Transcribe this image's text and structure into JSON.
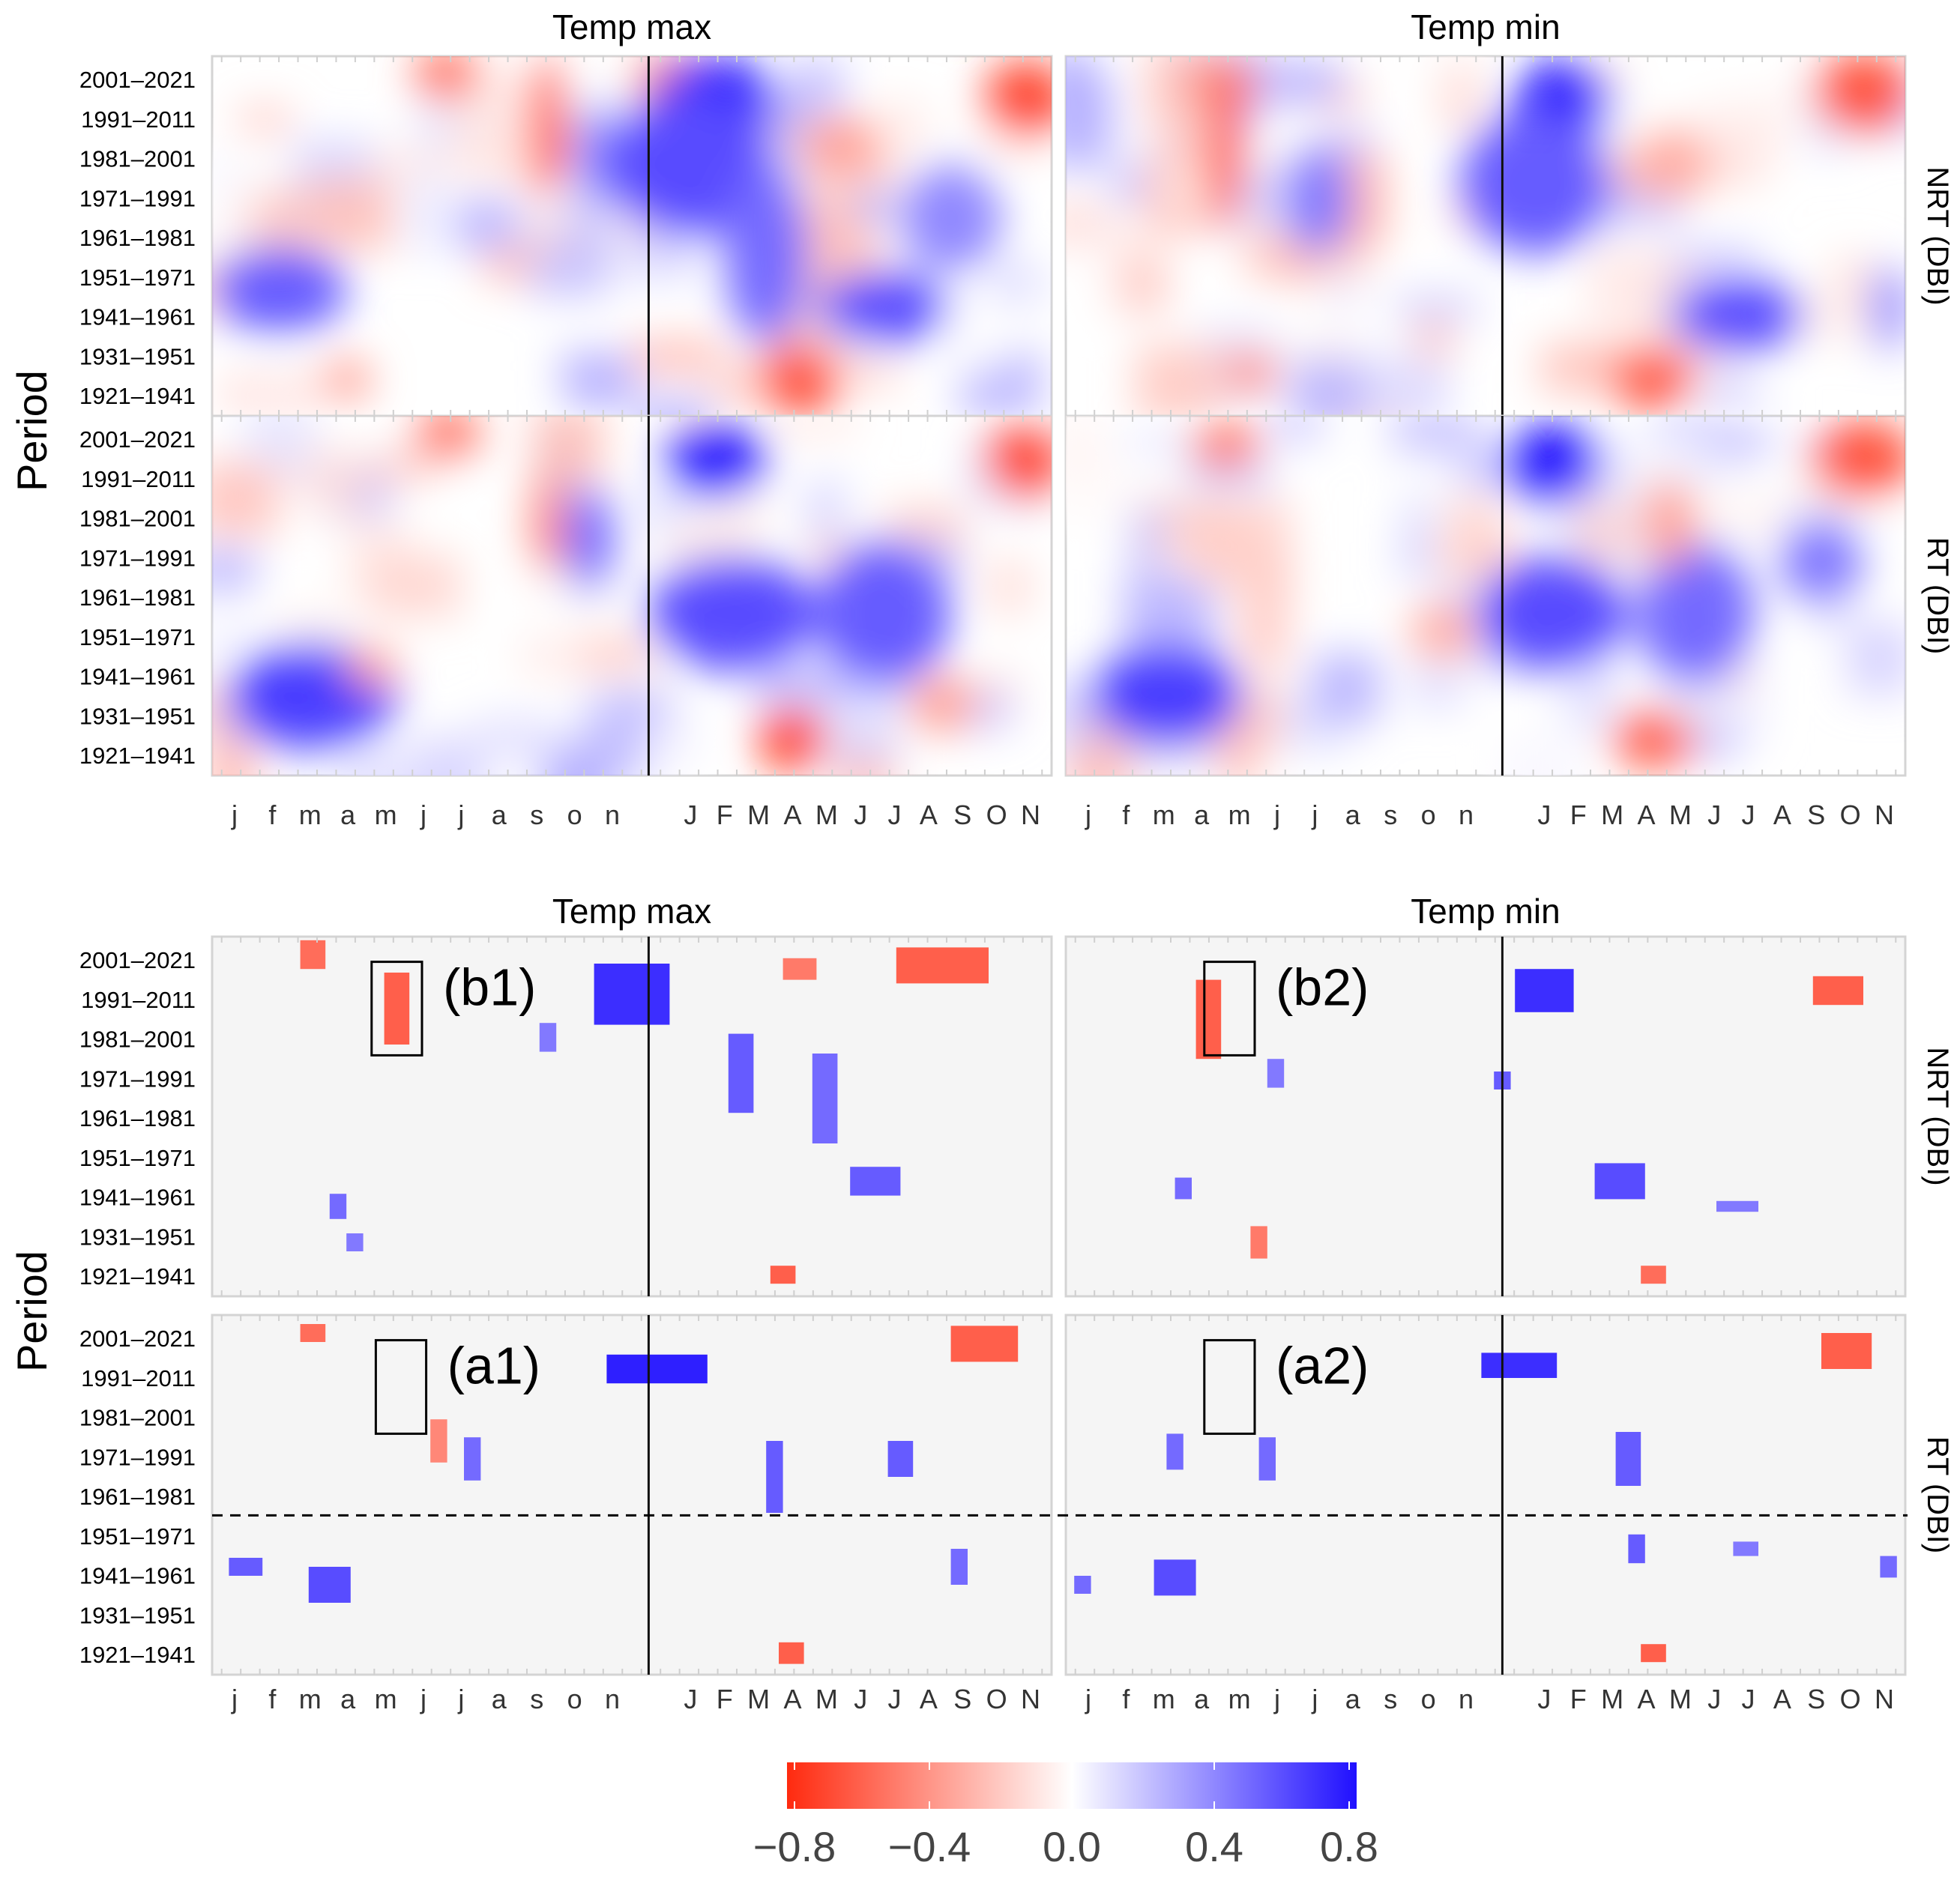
{
  "chart_data": {
    "type": "heatmap",
    "figure_title": "",
    "column_titles": [
      "Temp max",
      "Temp min"
    ],
    "row_strip_labels": [
      "NRT (DBI)",
      "RT (DBI)"
    ],
    "y_axis_label": "Period",
    "y_categories": [
      "2001–2021",
      "1991–2011",
      "1981–2001",
      "1971–1991",
      "1961–1981",
      "1951–1971",
      "1941–1961",
      "1931–1951",
      "1921–1941"
    ],
    "x_tick_labels": [
      "j",
      "f",
      "m",
      "a",
      "m",
      "j",
      "j",
      "a",
      "s",
      "o",
      "n",
      "J",
      "F",
      "M",
      "A",
      "M",
      "J",
      "J",
      "A",
      "S",
      "O",
      "N"
    ],
    "colorbar": {
      "ticks": [
        -0.8,
        -0.4,
        0.0,
        0.4,
        0.8
      ],
      "tick_labels": [
        "−0.8",
        "−0.4",
        "0.0",
        "0.4",
        "0.8"
      ],
      "range": [
        -0.8,
        0.8
      ],
      "low_color": "#ff2a0f",
      "mid_color": "#ffffff",
      "high_color": "#2010ff"
    },
    "blocks": [
      {
        "name": "all-correlations",
        "significant_only": false,
        "panels": [
          {
            "column": "Temp max",
            "row": "NRT (DBI)",
            "patches": [
              {
                "x": 0.28,
                "y": 0.95,
                "v": -0.55,
                "rx": 0.04,
                "ry": 0.07
              },
              {
                "x": 0.56,
                "y": 0.93,
                "v": -0.45,
                "rx": 0.06,
                "ry": 0.08
              },
              {
                "x": 0.97,
                "y": 0.88,
                "v": -0.7,
                "rx": 0.05,
                "ry": 0.11
              },
              {
                "x": 0.4,
                "y": 0.8,
                "v": -0.75,
                "rx": 0.02,
                "ry": 0.2
              },
              {
                "x": 0.46,
                "y": 0.72,
                "v": 0.4,
                "rx": 0.03,
                "ry": 0.15
              },
              {
                "x": 0.6,
                "y": 0.88,
                "v": 0.75,
                "rx": 0.07,
                "ry": 0.12
              },
              {
                "x": 0.57,
                "y": 0.7,
                "v": 0.6,
                "rx": 0.1,
                "ry": 0.2
              },
              {
                "x": 0.66,
                "y": 0.45,
                "v": 0.5,
                "rx": 0.05,
                "ry": 0.25
              },
              {
                "x": 0.8,
                "y": 0.3,
                "v": 0.6,
                "rx": 0.08,
                "ry": 0.1
              },
              {
                "x": 0.7,
                "y": 0.1,
                "v": -0.65,
                "rx": 0.05,
                "ry": 0.1
              },
              {
                "x": 0.08,
                "y": 0.35,
                "v": 0.55,
                "rx": 0.08,
                "ry": 0.12
              },
              {
                "x": 0.16,
                "y": 0.1,
                "v": -0.35,
                "rx": 0.03,
                "ry": 0.06
              },
              {
                "x": 0.75,
                "y": 0.75,
                "v": -0.35,
                "rx": 0.05,
                "ry": 0.08
              },
              {
                "x": 0.88,
                "y": 0.55,
                "v": 0.4,
                "rx": 0.06,
                "ry": 0.15
              }
            ]
          },
          {
            "column": "Temp min",
            "row": "NRT (DBI)",
            "patches": [
              {
                "x": 0.19,
                "y": 0.92,
                "v": -0.5,
                "rx": 0.04,
                "ry": 0.07
              },
              {
                "x": 0.95,
                "y": 0.9,
                "v": -0.65,
                "rx": 0.06,
                "ry": 0.11
              },
              {
                "x": 0.19,
                "y": 0.72,
                "v": -0.7,
                "rx": 0.02,
                "ry": 0.2
              },
              {
                "x": 0.59,
                "y": 0.87,
                "v": 0.75,
                "rx": 0.06,
                "ry": 0.12
              },
              {
                "x": 0.56,
                "y": 0.65,
                "v": 0.55,
                "rx": 0.09,
                "ry": 0.2
              },
              {
                "x": 0.8,
                "y": 0.28,
                "v": 0.6,
                "rx": 0.08,
                "ry": 0.1
              },
              {
                "x": 0.7,
                "y": 0.1,
                "v": -0.6,
                "rx": 0.05,
                "ry": 0.09
              },
              {
                "x": 0.22,
                "y": 0.12,
                "v": -0.45,
                "rx": 0.03,
                "ry": 0.06
              },
              {
                "x": 0.3,
                "y": 0.6,
                "v": 0.45,
                "rx": 0.04,
                "ry": 0.15
              },
              {
                "x": 0.72,
                "y": 0.7,
                "v": -0.3,
                "rx": 0.05,
                "ry": 0.1
              },
              {
                "x": 0.98,
                "y": 0.3,
                "v": 0.45,
                "rx": 0.02,
                "ry": 0.12
              }
            ]
          },
          {
            "column": "Temp max",
            "row": "RT (DBI)",
            "patches": [
              {
                "x": 0.28,
                "y": 0.95,
                "v": -0.55,
                "rx": 0.04,
                "ry": 0.07
              },
              {
                "x": 0.97,
                "y": 0.88,
                "v": -0.7,
                "rx": 0.05,
                "ry": 0.11
              },
              {
                "x": 0.6,
                "y": 0.88,
                "v": 0.8,
                "rx": 0.06,
                "ry": 0.11
              },
              {
                "x": 0.62,
                "y": 0.45,
                "v": 0.6,
                "rx": 0.1,
                "ry": 0.16
              },
              {
                "x": 0.8,
                "y": 0.45,
                "v": 0.55,
                "rx": 0.08,
                "ry": 0.2
              },
              {
                "x": 0.69,
                "y": 0.1,
                "v": -0.7,
                "rx": 0.04,
                "ry": 0.09
              },
              {
                "x": 0.12,
                "y": 0.22,
                "v": 0.65,
                "rx": 0.1,
                "ry": 0.15
              },
              {
                "x": 0.4,
                "y": 0.7,
                "v": -0.45,
                "rx": 0.02,
                "ry": 0.15
              },
              {
                "x": 0.19,
                "y": 0.3,
                "v": -0.35,
                "rx": 0.03,
                "ry": 0.06
              },
              {
                "x": 0.45,
                "y": 0.65,
                "v": 0.5,
                "rx": 0.03,
                "ry": 0.15
              },
              {
                "x": 0.87,
                "y": 0.2,
                "v": -0.35,
                "rx": 0.04,
                "ry": 0.08
              }
            ]
          },
          {
            "column": "Temp min",
            "row": "RT (DBI)",
            "patches": [
              {
                "x": 0.19,
                "y": 0.92,
                "v": -0.5,
                "rx": 0.04,
                "ry": 0.07
              },
              {
                "x": 0.95,
                "y": 0.88,
                "v": -0.65,
                "rx": 0.06,
                "ry": 0.11
              },
              {
                "x": 0.58,
                "y": 0.87,
                "v": 0.8,
                "rx": 0.06,
                "ry": 0.11
              },
              {
                "x": 0.58,
                "y": 0.45,
                "v": 0.6,
                "rx": 0.09,
                "ry": 0.16
              },
              {
                "x": 0.75,
                "y": 0.45,
                "v": 0.5,
                "rx": 0.07,
                "ry": 0.2
              },
              {
                "x": 0.7,
                "y": 0.1,
                "v": -0.6,
                "rx": 0.05,
                "ry": 0.08
              },
              {
                "x": 0.12,
                "y": 0.22,
                "v": 0.65,
                "rx": 0.09,
                "ry": 0.14
              },
              {
                "x": 0.72,
                "y": 0.7,
                "v": -0.35,
                "rx": 0.03,
                "ry": 0.12
              },
              {
                "x": 0.9,
                "y": 0.6,
                "v": 0.45,
                "rx": 0.05,
                "ry": 0.12
              },
              {
                "x": 0.45,
                "y": 0.4,
                "v": -0.3,
                "rx": 0.04,
                "ry": 0.08
              }
            ]
          }
        ]
      },
      {
        "name": "significant-correlations",
        "significant_only": true,
        "panels": [
          {
            "column": "Temp max",
            "row": "NRT (DBI)",
            "cells": [
              {
                "x": 0.12,
                "y": 0.95,
                "v": -0.55,
                "w": 0.03,
                "h": 0.08
              },
              {
                "x": 0.7,
                "y": 0.91,
                "v": -0.5,
                "w": 0.04,
                "h": 0.06
              },
              {
                "x": 0.22,
                "y": 0.8,
                "v": -0.6,
                "w": 0.03,
                "h": 0.2
              },
              {
                "x": 0.5,
                "y": 0.84,
                "v": 0.7,
                "w": 0.09,
                "h": 0.17
              },
              {
                "x": 0.63,
                "y": 0.62,
                "v": 0.55,
                "w": 0.03,
                "h": 0.22
              },
              {
                "x": 0.87,
                "y": 0.92,
                "v": -0.6,
                "w": 0.11,
                "h": 0.1
              },
              {
                "x": 0.73,
                "y": 0.55,
                "v": 0.5,
                "w": 0.03,
                "h": 0.25
              },
              {
                "x": 0.79,
                "y": 0.32,
                "v": 0.55,
                "w": 0.06,
                "h": 0.08
              },
              {
                "x": 0.68,
                "y": 0.06,
                "v": -0.6,
                "w": 0.03,
                "h": 0.05
              },
              {
                "x": 0.15,
                "y": 0.25,
                "v": 0.5,
                "w": 0.02,
                "h": 0.07
              },
              {
                "x": 0.17,
                "y": 0.15,
                "v": 0.45,
                "w": 0.02,
                "h": 0.05
              },
              {
                "x": 0.4,
                "y": 0.72,
                "v": 0.45,
                "w": 0.02,
                "h": 0.08
              }
            ]
          },
          {
            "column": "Temp min",
            "row": "NRT (DBI)",
            "cells": [
              {
                "x": 0.17,
                "y": 0.77,
                "v": -0.6,
                "w": 0.03,
                "h": 0.22
              },
              {
                "x": 0.57,
                "y": 0.85,
                "v": 0.7,
                "w": 0.07,
                "h": 0.12
              },
              {
                "x": 0.52,
                "y": 0.6,
                "v": 0.55,
                "w": 0.02,
                "h": 0.05
              },
              {
                "x": 0.66,
                "y": 0.32,
                "v": 0.6,
                "w": 0.06,
                "h": 0.1
              },
              {
                "x": 0.92,
                "y": 0.85,
                "v": -0.6,
                "w": 0.06,
                "h": 0.08
              },
              {
                "x": 0.7,
                "y": 0.06,
                "v": -0.55,
                "w": 0.03,
                "h": 0.05
              },
              {
                "x": 0.23,
                "y": 0.15,
                "v": -0.5,
                "w": 0.02,
                "h": 0.09
              },
              {
                "x": 0.14,
                "y": 0.3,
                "v": 0.5,
                "w": 0.02,
                "h": 0.06
              },
              {
                "x": 0.25,
                "y": 0.62,
                "v": 0.45,
                "w": 0.02,
                "h": 0.08
              },
              {
                "x": 0.8,
                "y": 0.25,
                "v": 0.45,
                "w": 0.05,
                "h": 0.03
              }
            ]
          },
          {
            "column": "Temp max",
            "row": "RT (DBI)",
            "cells": [
              {
                "x": 0.12,
                "y": 0.95,
                "v": -0.55,
                "w": 0.03,
                "h": 0.05
              },
              {
                "x": 0.53,
                "y": 0.85,
                "v": 0.75,
                "w": 0.12,
                "h": 0.08
              },
              {
                "x": 0.92,
                "y": 0.92,
                "v": -0.6,
                "w": 0.08,
                "h": 0.1
              },
              {
                "x": 0.67,
                "y": 0.55,
                "v": 0.55,
                "w": 0.02,
                "h": 0.2
              },
              {
                "x": 0.82,
                "y": 0.6,
                "v": 0.55,
                "w": 0.03,
                "h": 0.1
              },
              {
                "x": 0.69,
                "y": 0.06,
                "v": -0.6,
                "w": 0.03,
                "h": 0.06
              },
              {
                "x": 0.14,
                "y": 0.25,
                "v": 0.6,
                "w": 0.05,
                "h": 0.1
              },
              {
                "x": 0.04,
                "y": 0.3,
                "v": 0.55,
                "w": 0.04,
                "h": 0.05
              },
              {
                "x": 0.27,
                "y": 0.65,
                "v": -0.45,
                "w": 0.02,
                "h": 0.12
              },
              {
                "x": 0.31,
                "y": 0.6,
                "v": 0.5,
                "w": 0.02,
                "h": 0.12
              },
              {
                "x": 0.89,
                "y": 0.3,
                "v": 0.5,
                "w": 0.02,
                "h": 0.1
              }
            ]
          },
          {
            "column": "Temp min",
            "row": "RT (DBI)",
            "cells": [
              {
                "x": 0.54,
                "y": 0.86,
                "v": 0.7,
                "w": 0.09,
                "h": 0.07
              },
              {
                "x": 0.93,
                "y": 0.9,
                "v": -0.6,
                "w": 0.06,
                "h": 0.1
              },
              {
                "x": 0.67,
                "y": 0.6,
                "v": 0.55,
                "w": 0.03,
                "h": 0.15
              },
              {
                "x": 0.68,
                "y": 0.35,
                "v": 0.55,
                "w": 0.02,
                "h": 0.08
              },
              {
                "x": 0.7,
                "y": 0.06,
                "v": -0.6,
                "w": 0.03,
                "h": 0.05
              },
              {
                "x": 0.13,
                "y": 0.27,
                "v": 0.6,
                "w": 0.05,
                "h": 0.1
              },
              {
                "x": 0.02,
                "y": 0.25,
                "v": 0.5,
                "w": 0.02,
                "h": 0.05
              },
              {
                "x": 0.24,
                "y": 0.6,
                "v": 0.5,
                "w": 0.02,
                "h": 0.12
              },
              {
                "x": 0.13,
                "y": 0.62,
                "v": 0.5,
                "w": 0.02,
                "h": 0.1
              },
              {
                "x": 0.81,
                "y": 0.35,
                "v": 0.45,
                "w": 0.03,
                "h": 0.04
              },
              {
                "x": 0.98,
                "y": 0.3,
                "v": 0.5,
                "w": 0.02,
                "h": 0.06
              }
            ]
          }
        ],
        "annotations": [
          {
            "label": "(b1)",
            "column": "Temp max",
            "row": "NRT (DBI)",
            "x": 0.22,
            "y": 0.8,
            "w": 0.06,
            "h": 0.26
          },
          {
            "label": "(b2)",
            "column": "Temp min",
            "row": "NRT (DBI)",
            "x": 0.195,
            "y": 0.8,
            "w": 0.06,
            "h": 0.26
          },
          {
            "label": "(a1)",
            "column": "Temp max",
            "row": "RT (DBI)",
            "x": 0.225,
            "y": 0.8,
            "w": 0.06,
            "h": 0.26
          },
          {
            "label": "(a2)",
            "column": "Temp min",
            "row": "RT (DBI)",
            "x": 0.195,
            "y": 0.8,
            "w": 0.06,
            "h": 0.26
          }
        ],
        "dashed_line_between": [
          "1961–1981",
          "1951–1971"
        ]
      }
    ]
  }
}
